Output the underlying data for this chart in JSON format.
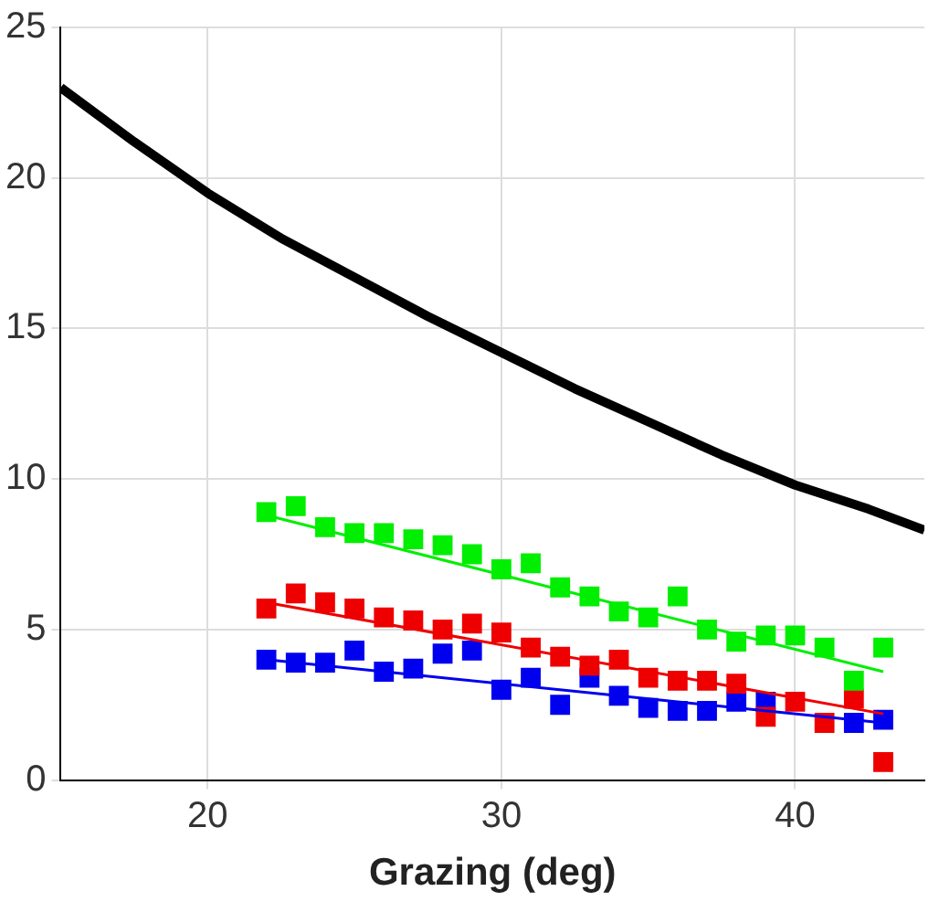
{
  "chart_data": {
    "type": "scatter",
    "xlabel": "Grazing (deg)",
    "xlim": [
      15,
      44.4
    ],
    "xticks": [
      20,
      30,
      40
    ],
    "ylim": [
      0,
      25
    ],
    "yticks": [
      0,
      5,
      10,
      15,
      20,
      25
    ],
    "grid": true,
    "legend": false,
    "marker": "square",
    "x": [
      22,
      23,
      24,
      25,
      26,
      27,
      28,
      29,
      30,
      31,
      32,
      33,
      34,
      35,
      36,
      37,
      38,
      39,
      40,
      41,
      42,
      43
    ],
    "series": [
      {
        "type": "line",
        "color": "#000000",
        "marker": "none",
        "x": [
          15,
          17.5,
          20,
          22.5,
          25,
          27.5,
          30,
          32.5,
          35,
          37.5,
          40,
          42.5,
          44.4
        ],
        "values": [
          23,
          21.2,
          19.5,
          18,
          16.7,
          15.4,
          14.2,
          13,
          11.9,
          10.8,
          9.8,
          9,
          8.3
        ]
      },
      {
        "color": "#00ee00",
        "values": [
          8.9,
          9.1,
          8.4,
          8.2,
          8.2,
          8,
          7.8,
          7.5,
          7,
          7.2,
          6.4,
          6.1,
          5.6,
          5.4,
          6.1,
          5,
          4.6,
          4.8,
          4.8,
          4.4,
          3.3,
          4.4
        ]
      },
      {
        "color": "#ee0000",
        "values": [
          5.7,
          6.2,
          5.9,
          5.7,
          5.4,
          5.3,
          5,
          5.2,
          4.9,
          4.4,
          4.1,
          3.8,
          4,
          3.4,
          3.3,
          3.3,
          3.2,
          2.1,
          2.6,
          1.9,
          2.7,
          0.6
        ]
      },
      {
        "color": "#0000ee",
        "values": [
          4,
          3.9,
          3.9,
          4.3,
          3.6,
          3.7,
          4.2,
          4.3,
          3,
          3.4,
          2.5,
          3.4,
          2.8,
          2.4,
          2.3,
          2.3,
          2.6,
          2.6,
          null,
          null,
          1.9,
          2
        ]
      },
      {
        "type": "line",
        "color": "#00ee00",
        "marker": "none",
        "x": [
          22,
          43
        ],
        "values": [
          8.8,
          3.6
        ]
      },
      {
        "type": "line",
        "color": "#ee0000",
        "marker": "none",
        "x": [
          22,
          43
        ],
        "values": [
          5.9,
          2.2
        ]
      },
      {
        "type": "line",
        "color": "#0000ee",
        "marker": "none",
        "x": [
          22,
          43
        ],
        "values": [
          4,
          1.9
        ]
      }
    ]
  }
}
